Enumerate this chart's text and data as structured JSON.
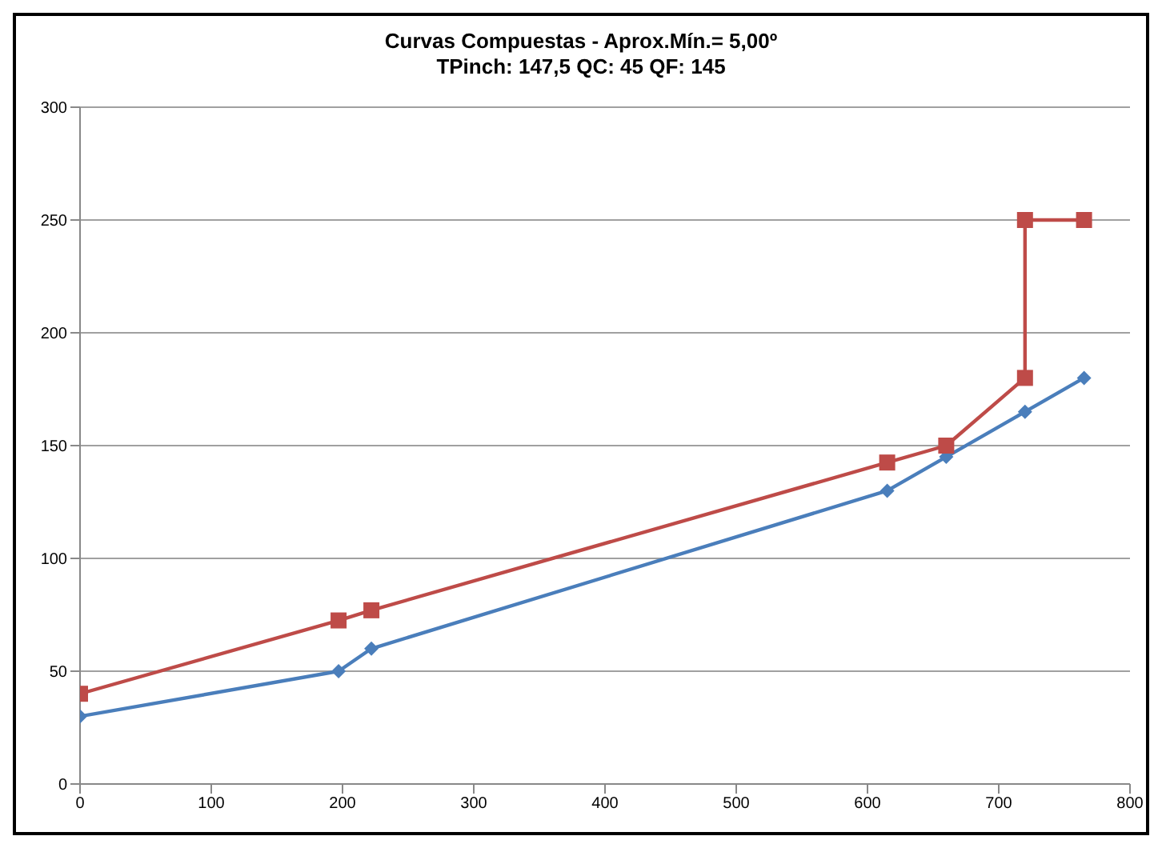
{
  "chart_data": {
    "type": "line",
    "title": "Curvas Compuestas  - Aprox.Mín.= 5,00º",
    "subtitle": "TPinch: 147,5     QC: 45     QF: 145",
    "series": [
      {
        "color": "#4a7ebb",
        "marker": "diamond",
        "x": [
          0,
          197,
          222,
          615,
          660,
          720,
          765
        ],
        "values": [
          30,
          50,
          60,
          130,
          145,
          165,
          180
        ]
      },
      {
        "color": "#be4b48",
        "marker": "square",
        "x": [
          0,
          197,
          222,
          615,
          660,
          720,
          720,
          765
        ],
        "values": [
          40,
          72.5,
          77,
          142.5,
          150,
          180,
          250,
          250
        ]
      }
    ],
    "xlim": [
      0,
      800
    ],
    "xticks": [
      0,
      100,
      200,
      300,
      400,
      500,
      600,
      700,
      800
    ],
    "ylim": [
      0,
      300
    ],
    "yticks": [
      0,
      50,
      100,
      150,
      200,
      250,
      300
    ],
    "grid": "y",
    "legend": false
  }
}
